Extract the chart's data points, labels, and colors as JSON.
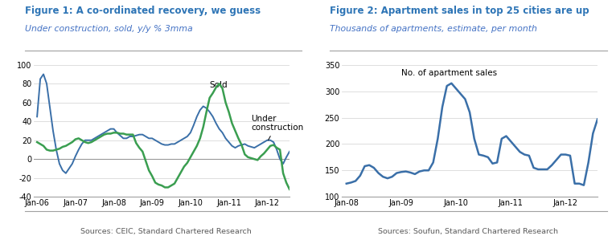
{
  "fig1_title": "Figure 1: A co-ordinated recovery, we guess",
  "fig1_subtitle": "Under construction, sold, y/y % 3mma",
  "fig1_source": "Sources: CEIC, Standard Chartered Research",
  "fig1_ylim": [
    -40,
    100
  ],
  "fig1_yticks": [
    -40,
    -20,
    0,
    20,
    40,
    60,
    80,
    100
  ],
  "fig1_xticks": [
    "Jan-06",
    "Jan-07",
    "Jan-08",
    "Jan-09",
    "Jan-10",
    "Jan-11",
    "Jan-12"
  ],
  "fig1_sold_label": "Sold",
  "fig1_construction_label": "Under\nconstruction",
  "fig1_sold_color": "#3a9e50",
  "fig1_construction_color": "#3a6fa8",
  "sold_x": [
    0,
    1,
    2,
    3,
    4,
    5,
    6,
    7,
    8,
    9,
    10,
    11,
    12,
    13,
    14,
    15,
    16,
    17,
    18,
    19,
    20,
    21,
    22,
    23,
    24,
    25,
    26,
    27,
    28,
    29,
    30,
    31,
    32,
    33,
    34,
    35,
    36,
    37,
    38,
    39,
    40,
    41,
    42,
    43,
    44,
    45,
    46,
    47,
    48,
    49,
    50,
    51,
    52,
    53,
    54,
    55,
    56,
    57,
    58,
    59,
    60,
    61,
    62,
    63,
    64,
    65,
    66,
    67,
    68,
    69,
    70,
    71,
    72,
    73,
    74,
    75,
    76,
    77,
    78,
    79
  ],
  "sold_y": [
    18,
    16,
    14,
    10,
    9,
    9,
    10,
    11,
    13,
    14,
    16,
    18,
    21,
    22,
    20,
    18,
    17,
    18,
    20,
    22,
    24,
    26,
    27,
    27,
    28,
    28,
    27,
    27,
    26,
    26,
    26,
    17,
    12,
    8,
    -2,
    -12,
    -18,
    -25,
    -27,
    -28,
    -30,
    -30,
    -28,
    -26,
    -20,
    -14,
    -8,
    -4,
    2,
    8,
    14,
    22,
    34,
    50,
    65,
    70,
    76,
    80,
    75,
    60,
    50,
    38,
    30,
    22,
    15,
    5,
    2,
    1,
    0,
    -1,
    3,
    6,
    10,
    14,
    15,
    12,
    10,
    -15,
    -25,
    -32
  ],
  "construction_x": [
    0,
    1,
    2,
    3,
    4,
    5,
    6,
    7,
    8,
    9,
    10,
    11,
    12,
    13,
    14,
    15,
    16,
    17,
    18,
    19,
    20,
    21,
    22,
    23,
    24,
    25,
    26,
    27,
    28,
    29,
    30,
    31,
    32,
    33,
    34,
    35,
    36,
    37,
    38,
    39,
    40,
    41,
    42,
    43,
    44,
    45,
    46,
    47,
    48,
    49,
    50,
    51,
    52,
    53,
    54,
    55,
    56,
    57,
    58,
    59,
    60,
    61,
    62,
    63,
    64,
    65,
    66,
    67,
    68,
    69,
    70,
    71,
    72,
    73,
    74,
    75,
    76,
    77,
    78,
    79
  ],
  "construction_y": [
    45,
    85,
    90,
    80,
    55,
    30,
    10,
    -5,
    -12,
    -15,
    -10,
    -5,
    3,
    10,
    16,
    20,
    20,
    20,
    22,
    24,
    26,
    28,
    30,
    32,
    32,
    28,
    25,
    22,
    22,
    24,
    24,
    25,
    26,
    26,
    24,
    22,
    22,
    20,
    18,
    16,
    15,
    15,
    16,
    16,
    18,
    20,
    22,
    24,
    28,
    36,
    45,
    52,
    56,
    54,
    50,
    45,
    38,
    32,
    28,
    22,
    18,
    14,
    12,
    14,
    15,
    16,
    14,
    13,
    12,
    14,
    16,
    18,
    20,
    20,
    18,
    10,
    0,
    -5,
    2,
    8
  ],
  "fig2_title": "Figure 2: Apartment sales in top 25 cities are up",
  "fig2_subtitle": "Thousands of apartments, estimate, per month",
  "fig2_source": "Sources: Soufun, Standard Chartered Research",
  "fig2_ylim": [
    100,
    350
  ],
  "fig2_yticks": [
    100,
    150,
    200,
    250,
    300,
    350
  ],
  "fig2_xticks": [
    "Jan-08",
    "Jan-09",
    "Jan-10",
    "Jan-11",
    "Jan-12"
  ],
  "fig2_label": "No. of apartment sales",
  "fig2_color": "#3a6fa8",
  "apt_x": [
    0,
    1,
    2,
    3,
    4,
    5,
    6,
    7,
    8,
    9,
    10,
    11,
    12,
    13,
    14,
    15,
    16,
    17,
    18,
    19,
    20,
    21,
    22,
    23,
    24,
    25,
    26,
    27,
    28,
    29,
    30,
    31,
    32,
    33,
    34,
    35,
    36,
    37,
    38,
    39,
    40,
    41,
    42,
    43,
    44,
    45,
    46,
    47,
    48,
    49,
    50,
    51,
    52,
    53,
    54,
    55
  ],
  "apt_y": [
    125,
    127,
    130,
    140,
    158,
    160,
    155,
    145,
    138,
    135,
    138,
    145,
    147,
    148,
    146,
    143,
    148,
    150,
    150,
    165,
    210,
    270,
    310,
    315,
    305,
    295,
    285,
    260,
    210,
    180,
    178,
    175,
    163,
    165,
    210,
    215,
    205,
    195,
    185,
    180,
    178,
    155,
    152,
    152,
    152,
    160,
    170,
    180,
    180,
    178,
    125,
    125,
    122,
    165,
    220,
    247
  ],
  "title_color": "#2e75b6",
  "subtitle_color": "#4472c4",
  "source_color": "#595959",
  "bg_color": "#ffffff",
  "grid_color": "#d0d0d0",
  "zero_line_color": "#999999",
  "sep_line_color": "#a0a0a0"
}
